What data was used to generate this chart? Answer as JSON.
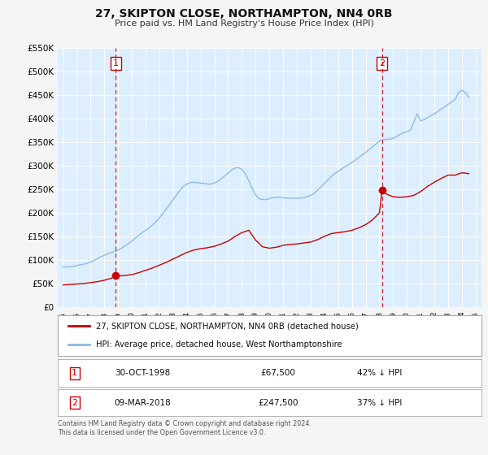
{
  "title": "27, SKIPTON CLOSE, NORTHAMPTON, NN4 0RB",
  "subtitle": "Price paid vs. HM Land Registry's House Price Index (HPI)",
  "fig_bg_color": "#f5f5f5",
  "plot_bg_color": "#ddeeff",
  "grid_color": "#ffffff",
  "hpi_color": "#88bbee",
  "price_color": "#cc0000",
  "marker_color": "#cc0000",
  "vline_color": "#cc0000",
  "xlim": [
    1994.6,
    2025.4
  ],
  "ylim": [
    0,
    550000
  ],
  "yticks": [
    0,
    50000,
    100000,
    150000,
    200000,
    250000,
    300000,
    350000,
    400000,
    450000,
    500000,
    550000
  ],
  "ytick_labels": [
    "£0",
    "£50K",
    "£100K",
    "£150K",
    "£200K",
    "£250K",
    "£300K",
    "£350K",
    "£400K",
    "£450K",
    "£500K",
    "£550K"
  ],
  "xticks": [
    1995,
    1996,
    1997,
    1998,
    1999,
    2000,
    2001,
    2002,
    2003,
    2004,
    2005,
    2006,
    2007,
    2008,
    2009,
    2010,
    2011,
    2012,
    2013,
    2014,
    2015,
    2016,
    2017,
    2018,
    2019,
    2020,
    2021,
    2022,
    2023,
    2024,
    2025
  ],
  "purchase1_x": 1998.83,
  "purchase1_y": 67500,
  "purchase1_label": "1",
  "purchase1_date": "30-OCT-1998",
  "purchase1_price": "£67,500",
  "purchase1_hpi": "42% ↓ HPI",
  "purchase2_x": 2018.19,
  "purchase2_y": 247500,
  "purchase2_label": "2",
  "purchase2_date": "09-MAR-2018",
  "purchase2_price": "£247,500",
  "purchase2_hpi": "37% ↓ HPI",
  "legend_label1": "27, SKIPTON CLOSE, NORTHAMPTON, NN4 0RB (detached house)",
  "legend_label2": "HPI: Average price, detached house, West Northamptonshire",
  "footnote": "Contains HM Land Registry data © Crown copyright and database right 2024.\nThis data is licensed under the Open Government Licence v3.0.",
  "hpi_x": [
    1995.0,
    1995.25,
    1995.5,
    1995.75,
    1996.0,
    1996.25,
    1996.5,
    1996.75,
    1997.0,
    1997.25,
    1997.5,
    1997.75,
    1998.0,
    1998.25,
    1998.5,
    1998.75,
    1999.0,
    1999.25,
    1999.5,
    1999.75,
    2000.0,
    2000.25,
    2000.5,
    2000.75,
    2001.0,
    2001.25,
    2001.5,
    2001.75,
    2002.0,
    2002.25,
    2002.5,
    2002.75,
    2003.0,
    2003.25,
    2003.5,
    2003.75,
    2004.0,
    2004.25,
    2004.5,
    2004.75,
    2005.0,
    2005.25,
    2005.5,
    2005.75,
    2006.0,
    2006.25,
    2006.5,
    2006.75,
    2007.0,
    2007.25,
    2007.5,
    2007.75,
    2008.0,
    2008.25,
    2008.5,
    2008.75,
    2009.0,
    2009.25,
    2009.5,
    2009.75,
    2010.0,
    2010.25,
    2010.5,
    2010.75,
    2011.0,
    2011.25,
    2011.5,
    2011.75,
    2012.0,
    2012.25,
    2012.5,
    2012.75,
    2013.0,
    2013.25,
    2013.5,
    2013.75,
    2014.0,
    2014.25,
    2014.5,
    2014.75,
    2015.0,
    2015.25,
    2015.5,
    2015.75,
    2016.0,
    2016.25,
    2016.5,
    2016.75,
    2017.0,
    2017.25,
    2017.5,
    2017.75,
    2018.0,
    2018.25,
    2018.5,
    2018.75,
    2019.0,
    2019.25,
    2019.5,
    2019.75,
    2020.0,
    2020.25,
    2020.5,
    2020.75,
    2021.0,
    2021.25,
    2021.5,
    2021.75,
    2022.0,
    2022.25,
    2022.5,
    2022.75,
    2023.0,
    2023.25,
    2023.5,
    2023.75,
    2024.0,
    2024.25,
    2024.5
  ],
  "hpi_y": [
    85000,
    85500,
    86000,
    86500,
    88000,
    90000,
    91000,
    93000,
    96000,
    99000,
    103000,
    107000,
    110000,
    113000,
    116000,
    118000,
    121000,
    125000,
    130000,
    135000,
    140000,
    146000,
    152000,
    158000,
    163000,
    168000,
    174000,
    181000,
    189000,
    198000,
    208000,
    218000,
    228000,
    238000,
    248000,
    256000,
    261000,
    264000,
    265000,
    264000,
    263000,
    262000,
    261000,
    261000,
    263000,
    267000,
    272000,
    278000,
    284000,
    291000,
    295000,
    296000,
    292000,
    283000,
    268000,
    252000,
    238000,
    230000,
    228000,
    228000,
    230000,
    232000,
    233000,
    233000,
    232000,
    231000,
    231000,
    231000,
    231000,
    231000,
    232000,
    234000,
    237000,
    241000,
    248000,
    255000,
    262000,
    270000,
    277000,
    283000,
    288000,
    293000,
    298000,
    302000,
    307000,
    312000,
    317000,
    323000,
    328000,
    334000,
    340000,
    346000,
    352000,
    355000,
    356000,
    356000,
    358000,
    362000,
    366000,
    370000,
    372000,
    375000,
    392000,
    410000,
    395000,
    398000,
    402000,
    406000,
    410000,
    415000,
    420000,
    425000,
    430000,
    435000,
    440000,
    455000,
    460000,
    455000,
    445000
  ],
  "price_x": [
    1995.0,
    1995.5,
    1996.0,
    1996.5,
    1997.0,
    1997.5,
    1998.0,
    1998.5,
    1998.83,
    1999.0,
    1999.5,
    2000.0,
    2000.5,
    2001.0,
    2001.5,
    2002.0,
    2002.5,
    2003.0,
    2003.5,
    2004.0,
    2004.5,
    2005.0,
    2005.5,
    2006.0,
    2006.5,
    2007.0,
    2007.5,
    2008.0,
    2008.5,
    2009.0,
    2009.5,
    2010.0,
    2010.5,
    2011.0,
    2011.5,
    2012.0,
    2012.5,
    2013.0,
    2013.5,
    2014.0,
    2014.5,
    2015.0,
    2015.5,
    2016.0,
    2016.5,
    2017.0,
    2017.5,
    2018.0,
    2018.19,
    2018.5,
    2019.0,
    2019.5,
    2020.0,
    2020.5,
    2021.0,
    2021.5,
    2022.0,
    2022.5,
    2023.0,
    2023.5,
    2024.0,
    2024.5
  ],
  "price_y": [
    47000,
    48000,
    49000,
    50000,
    52000,
    54000,
    57000,
    61000,
    67500,
    66000,
    67000,
    69000,
    73000,
    78000,
    83000,
    89000,
    95000,
    102000,
    109000,
    116000,
    121000,
    124000,
    126000,
    129000,
    134000,
    140000,
    150000,
    158000,
    163000,
    142000,
    128000,
    125000,
    127000,
    131000,
    133000,
    134000,
    136000,
    138000,
    143000,
    150000,
    156000,
    158000,
    160000,
    163000,
    168000,
    175000,
    185000,
    200000,
    247500,
    240000,
    234000,
    233000,
    234000,
    237000,
    245000,
    256000,
    265000,
    273000,
    280000,
    280000,
    285000,
    283000
  ]
}
